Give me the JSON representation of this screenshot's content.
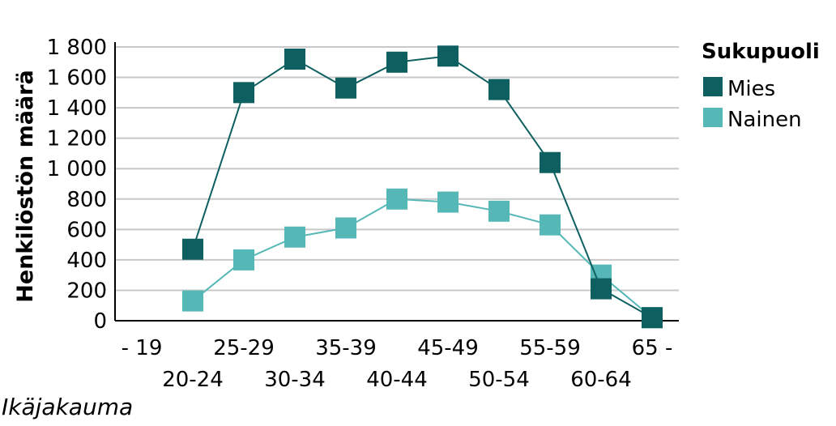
{
  "chart_data": {
    "type": "line",
    "categories": [
      "- 19",
      "20-24",
      "25-29",
      "30-34",
      "35-39",
      "40-44",
      "45-49",
      "50-54",
      "55-59",
      "60-64",
      "65 -"
    ],
    "series": [
      {
        "name": "Mies",
        "color": "#0d5f60",
        "values": [
          null,
          470,
          1500,
          1720,
          1530,
          1700,
          1740,
          1520,
          1040,
          210,
          20
        ]
      },
      {
        "name": "Nainen",
        "color": "#55b8b6",
        "values": [
          null,
          130,
          400,
          550,
          610,
          800,
          780,
          720,
          630,
          300,
          20
        ]
      }
    ],
    "xlabel": "Ikäjakauma",
    "ylabel": "Henkilöstön määrä",
    "legend_title": "Sukupuoli",
    "ylim": [
      0,
      1800
    ],
    "yticks": [
      0,
      200,
      400,
      600,
      800,
      1000,
      1200,
      1400,
      1600,
      1800
    ],
    "ytick_labels": [
      "0",
      "200",
      "400",
      "600",
      "800",
      "1 000",
      "1 200",
      "1 400",
      "1 600",
      "1 800"
    ],
    "grid": true,
    "legend_position": "top-right"
  }
}
